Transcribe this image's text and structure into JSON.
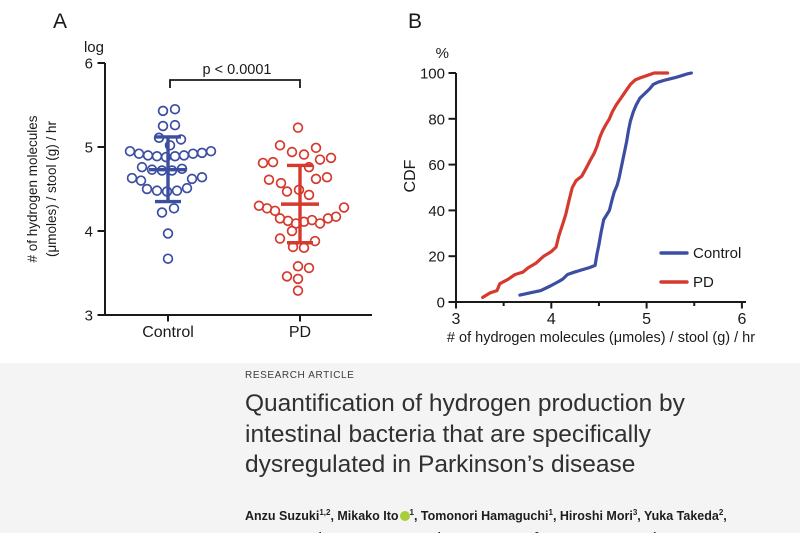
{
  "chart_data": [
    {
      "id": "panel_a",
      "type": "scatter",
      "panel_label": "A",
      "y_axis_scale": "log",
      "ylabel": "# of hydrogen molecules (μmoles) / stool (g) / hr",
      "ylabel_lines": [
        "# of hydrogen molecules",
        "(μmoles) / stool (g) / hr"
      ],
      "ylim": [
        3,
        6
      ],
      "yticks": [
        6,
        5,
        4,
        3
      ],
      "categories": [
        "Control",
        "PD"
      ],
      "significance": "p < 0.0001",
      "series": [
        {
          "name": "Control",
          "color": "#3c4ea1",
          "mean": 4.73,
          "sd_upper": 5.12,
          "sd_lower": 4.35,
          "points": [
            [
              -5,
              5.43
            ],
            [
              7,
              5.45
            ],
            [
              -5,
              5.25
            ],
            [
              7,
              5.26
            ],
            [
              -9,
              5.11
            ],
            [
              13,
              5.09
            ],
            [
              2,
              5.02
            ],
            [
              -38,
              4.95
            ],
            [
              -29,
              4.92
            ],
            [
              -20,
              4.9
            ],
            [
              -11,
              4.89
            ],
            [
              -2,
              4.88
            ],
            [
              7,
              4.89
            ],
            [
              16,
              4.9
            ],
            [
              25,
              4.92
            ],
            [
              34,
              4.93
            ],
            [
              43,
              4.95
            ],
            [
              -26,
              4.76
            ],
            [
              -16,
              4.73
            ],
            [
              -6,
              4.72
            ],
            [
              4,
              4.72
            ],
            [
              14,
              4.74
            ],
            [
              -36,
              4.63
            ],
            [
              -27,
              4.6
            ],
            [
              24,
              4.62
            ],
            [
              34,
              4.64
            ],
            [
              -21,
              4.5
            ],
            [
              -11,
              4.48
            ],
            [
              -1,
              4.47
            ],
            [
              9,
              4.48
            ],
            [
              19,
              4.51
            ],
            [
              -6,
              4.22
            ],
            [
              6,
              4.27
            ],
            [
              0,
              3.97
            ],
            [
              0,
              3.67
            ]
          ]
        },
        {
          "name": "PD",
          "color": "#d6392d",
          "mean": 4.32,
          "sd_upper": 4.78,
          "sd_lower": 3.86,
          "points": [
            [
              -2,
              5.23
            ],
            [
              -20,
              5.02
            ],
            [
              -8,
              4.94
            ],
            [
              4,
              4.91
            ],
            [
              16,
              4.99
            ],
            [
              -37,
              4.81
            ],
            [
              -27,
              4.82
            ],
            [
              9,
              4.76
            ],
            [
              20,
              4.85
            ],
            [
              31,
              4.87
            ],
            [
              -31,
              4.61
            ],
            [
              -19,
              4.57
            ],
            [
              16,
              4.62
            ],
            [
              27,
              4.64
            ],
            [
              -13,
              4.47
            ],
            [
              -1,
              4.49
            ],
            [
              9,
              4.43
            ],
            [
              -41,
              4.3
            ],
            [
              -33,
              4.27
            ],
            [
              -25,
              4.24
            ],
            [
              44,
              4.28
            ],
            [
              -20,
              4.15
            ],
            [
              -12,
              4.12
            ],
            [
              -4,
              4.09
            ],
            [
              4,
              4.11
            ],
            [
              12,
              4.13
            ],
            [
              20,
              4.09
            ],
            [
              28,
              4.15
            ],
            [
              36,
              4.17
            ],
            [
              -8,
              4.0
            ],
            [
              -20,
              3.91
            ],
            [
              15,
              3.88
            ],
            [
              -7,
              3.81
            ],
            [
              4,
              3.8
            ],
            [
              -2,
              3.58
            ],
            [
              9,
              3.56
            ],
            [
              -13,
              3.46
            ],
            [
              -2,
              3.43
            ],
            [
              -2,
              3.29
            ]
          ]
        }
      ]
    },
    {
      "id": "panel_b",
      "type": "line",
      "panel_label": "B",
      "ylabel": "CDF",
      "y_unit": "%",
      "xlabel": "# of hydrogen molecules (μmoles) / stool (g) / hr",
      "xlim": [
        3,
        6
      ],
      "ylim": [
        0,
        100
      ],
      "xticks": [
        3,
        4,
        5,
        6
      ],
      "x_minor_ticks": [
        3.5,
        4.5,
        5.5
      ],
      "yticks": [
        100,
        80,
        60,
        40,
        20,
        0
      ],
      "legend_position": "lower right",
      "series": [
        {
          "name": "Control",
          "color": "#3c4ea1",
          "points": [
            [
              3.67,
              3
            ],
            [
              3.78,
              4
            ],
            [
              3.89,
              5
            ],
            [
              3.99,
              7
            ],
            [
              4.08,
              9
            ],
            [
              4.12,
              10
            ],
            [
              4.17,
              12
            ],
            [
              4.24,
              13
            ],
            [
              4.32,
              14
            ],
            [
              4.4,
              15
            ],
            [
              4.46,
              16
            ],
            [
              4.48,
              21
            ],
            [
              4.5,
              25
            ],
            [
              4.52,
              30
            ],
            [
              4.55,
              36
            ],
            [
              4.58,
              38
            ],
            [
              4.61,
              40
            ],
            [
              4.64,
              45
            ],
            [
              4.66,
              48
            ],
            [
              4.69,
              51
            ],
            [
              4.71,
              54
            ],
            [
              4.73,
              58
            ],
            [
              4.75,
              62
            ],
            [
              4.77,
              66
            ],
            [
              4.79,
              70
            ],
            [
              4.81,
              75
            ],
            [
              4.83,
              79
            ],
            [
              4.86,
              83
            ],
            [
              4.89,
              86
            ],
            [
              4.93,
              89
            ],
            [
              4.98,
              91
            ],
            [
              5.03,
              93
            ],
            [
              5.07,
              95
            ],
            [
              5.12,
              96
            ],
            [
              5.2,
              97
            ],
            [
              5.3,
              98
            ],
            [
              5.38,
              99
            ],
            [
              5.42,
              99.5
            ],
            [
              5.47,
              100
            ]
          ]
        },
        {
          "name": "PD",
          "color": "#d6392d",
          "points": [
            [
              3.28,
              2
            ],
            [
              3.36,
              4
            ],
            [
              3.43,
              5
            ],
            [
              3.46,
              8
            ],
            [
              3.55,
              10
            ],
            [
              3.62,
              12
            ],
            [
              3.7,
              13
            ],
            [
              3.76,
              15
            ],
            [
              3.84,
              17
            ],
            [
              3.92,
              20
            ],
            [
              4.0,
              22
            ],
            [
              4.05,
              24
            ],
            [
              4.08,
              29
            ],
            [
              4.12,
              34
            ],
            [
              4.15,
              38
            ],
            [
              4.19,
              45
            ],
            [
              4.22,
              50
            ],
            [
              4.26,
              53
            ],
            [
              4.32,
              55
            ],
            [
              4.36,
              58
            ],
            [
              4.41,
              62
            ],
            [
              4.45,
              65
            ],
            [
              4.48,
              68
            ],
            [
              4.51,
              72
            ],
            [
              4.54,
              75
            ],
            [
              4.58,
              78
            ],
            [
              4.61,
              80
            ],
            [
              4.64,
              83
            ],
            [
              4.68,
              86
            ],
            [
              4.73,
              89
            ],
            [
              4.78,
              92
            ],
            [
              4.83,
              95
            ],
            [
              4.88,
              97
            ],
            [
              4.94,
              98
            ],
            [
              5.01,
              99
            ],
            [
              5.08,
              100
            ],
            [
              5.22,
              100
            ]
          ]
        }
      ]
    }
  ],
  "article": {
    "kicker": "RESEARCH ARTICLE",
    "title_lines": [
      "Quantification of hydrogen production by",
      "intestinal bacteria that are specifically",
      "dysregulated in Parkinson’s disease"
    ],
    "authors_line1": [
      {
        "name": "Anzu Suzuki",
        "sup": "1,2",
        "trail": ", "
      },
      {
        "name": "Mikako Ito",
        "orcid": true,
        "sup": "1",
        "trail": ", "
      },
      {
        "name": "Tomonori Hamaguchi",
        "sup": "1",
        "trail": ", "
      },
      {
        "name": "Hiroshi Mori",
        "sup": "3",
        "trail": ", "
      },
      {
        "name": "Yuka Takeda",
        "sup": "2",
        "trail": ","
      }
    ],
    "authors_line2": [
      {
        "name": "Ryuko Baba",
        "sup": "4",
        "trail": ", "
      },
      {
        "name": "Takeshi Watanabe",
        "sup": "4",
        "trail": ", "
      },
      {
        "name": "Ken Kurokawa",
        "sup": "3",
        "trail": ", "
      },
      {
        "name": "Susumu Asakawa",
        "sup": "4",
        "trail": ""
      }
    ]
  }
}
